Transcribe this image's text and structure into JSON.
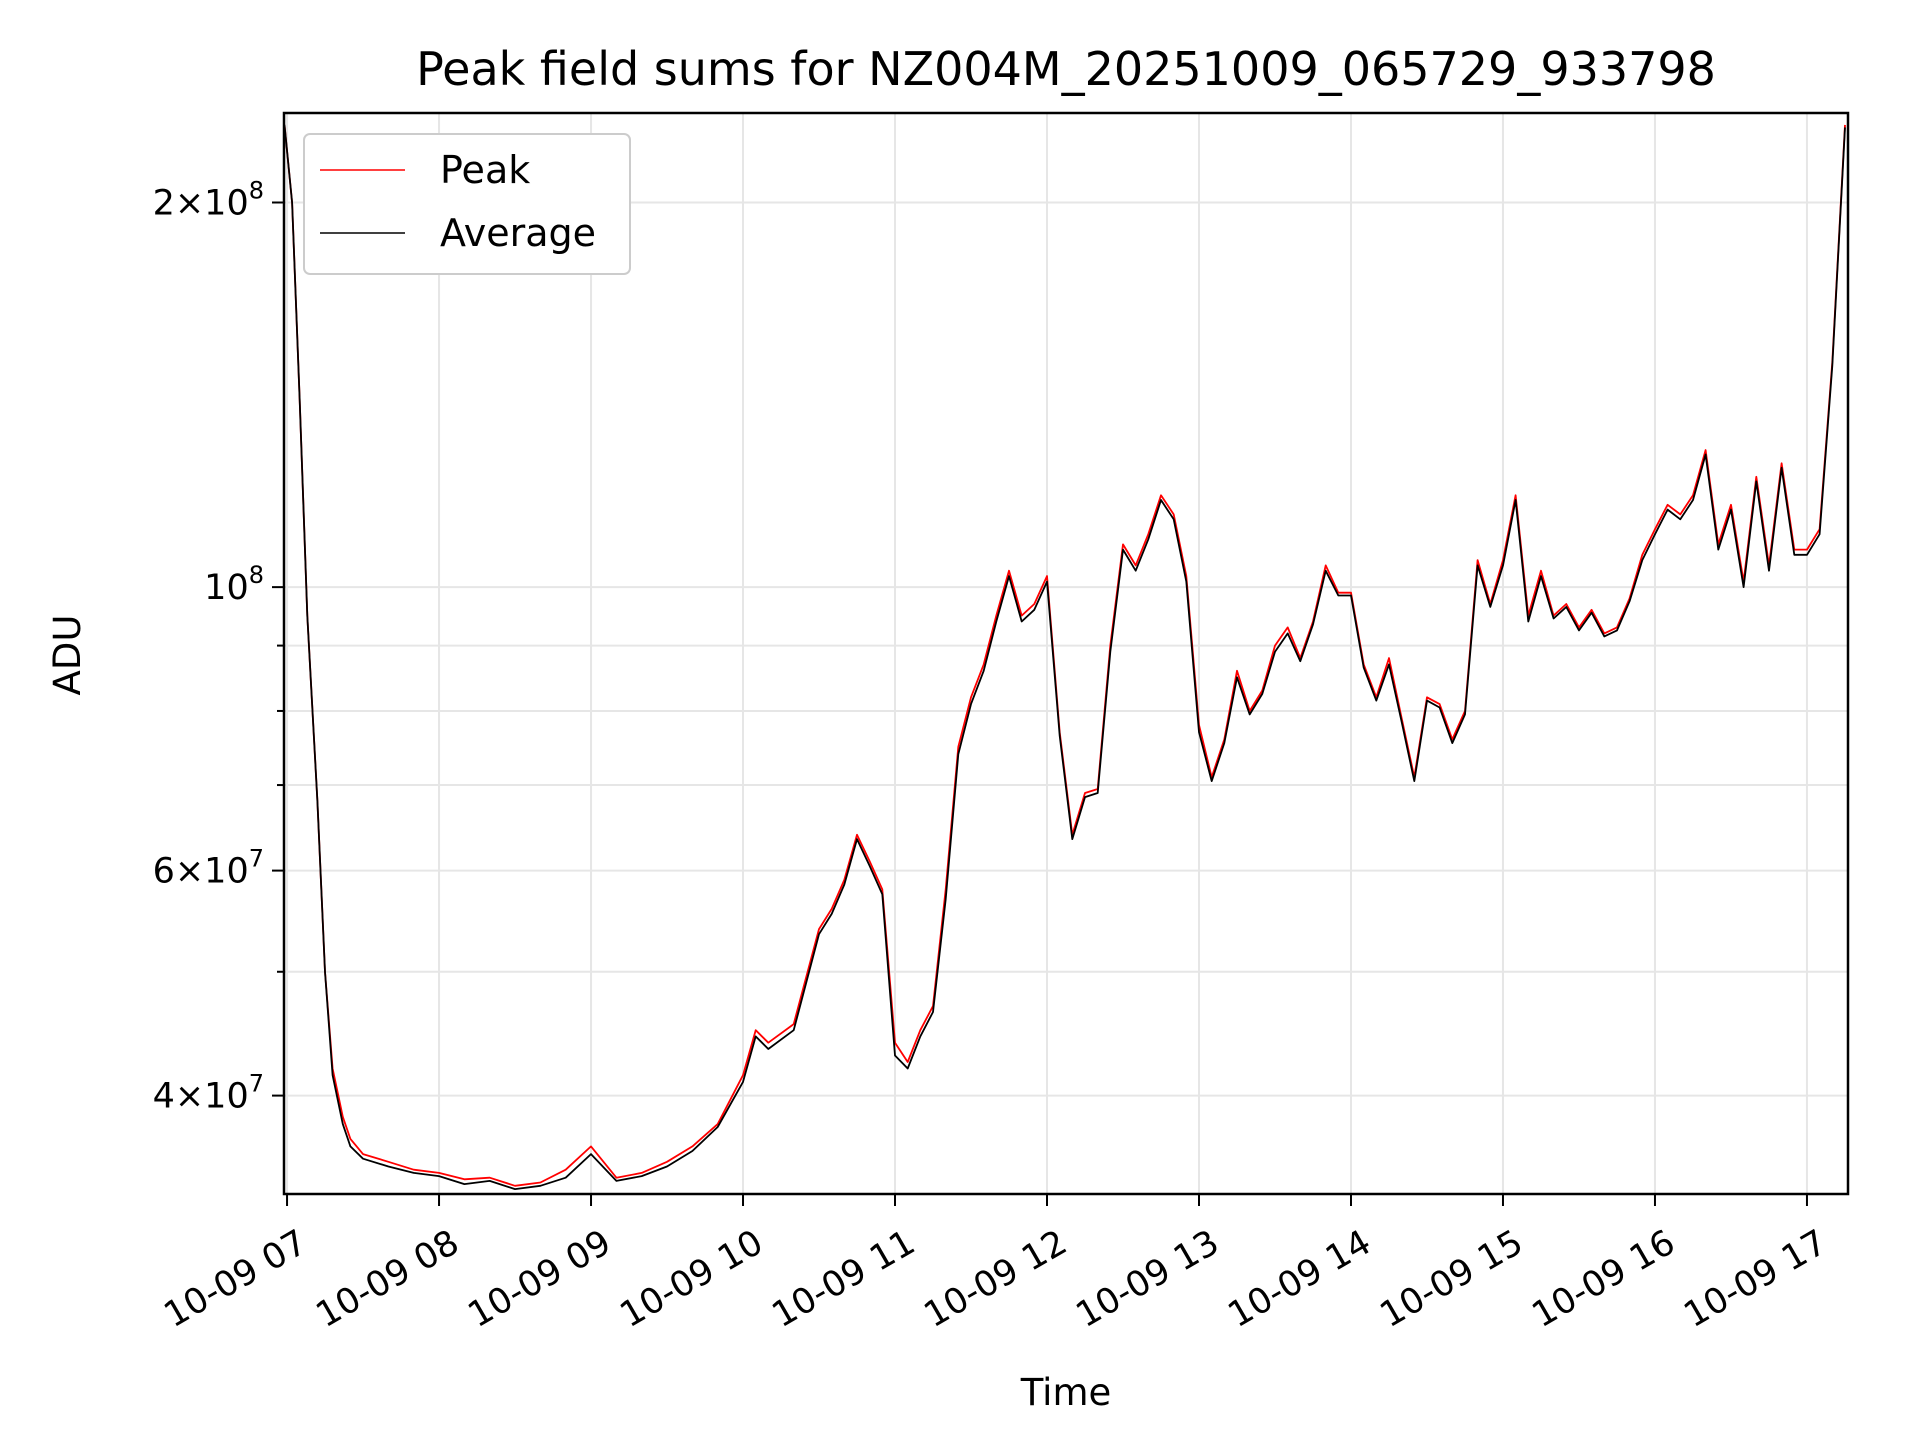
{
  "chart_data": {
    "type": "line",
    "title": "Peak field sums for NZ004M_20251009_065729_933798",
    "xlabel": "Time",
    "ylabel": "ADU",
    "yscale": "log",
    "ylim": [
      33500000,
      235000000
    ],
    "xlim_hours": [
      6.98,
      17.27
    ],
    "grid": true,
    "legend_position": "top-left",
    "x_ticks": [
      {
        "hour": 7,
        "label": "10-09 07"
      },
      {
        "hour": 8,
        "label": "10-09 08"
      },
      {
        "hour": 9,
        "label": "10-09 09"
      },
      {
        "hour": 10,
        "label": "10-09 10"
      },
      {
        "hour": 11,
        "label": "10-09 11"
      },
      {
        "hour": 12,
        "label": "10-09 12"
      },
      {
        "hour": 13,
        "label": "10-09 13"
      },
      {
        "hour": 14,
        "label": "10-09 14"
      },
      {
        "hour": 15,
        "label": "10-09 15"
      },
      {
        "hour": 16,
        "label": "10-09 16"
      },
      {
        "hour": 17,
        "label": "10-09 17"
      }
    ],
    "y_major_ticks": [
      {
        "value": 40000000,
        "mant": "4",
        "exp": "7"
      },
      {
        "value": 60000000,
        "mant": "6",
        "exp": "7"
      },
      {
        "value": 100000000,
        "mant": "",
        "exp": "8"
      },
      {
        "value": 200000000,
        "mant": "2",
        "exp": "8"
      }
    ],
    "y_minor_ticks": [
      50000000,
      70000000,
      80000000,
      90000000
    ],
    "time_labels": [
      "06:59",
      "07:02",
      "07:05",
      "07:08",
      "07:12",
      "07:15",
      "07:18",
      "07:22",
      "07:25",
      "07:30",
      "07:40",
      "07:50",
      "08:00",
      "08:10",
      "08:20",
      "08:30",
      "08:40",
      "08:50",
      "09:00",
      "09:10",
      "09:20",
      "09:30",
      "09:40",
      "09:50",
      "10:00",
      "10:05",
      "10:10",
      "10:20",
      "10:30",
      "10:35",
      "10:40",
      "10:45",
      "10:50",
      "10:55",
      "11:00",
      "11:05",
      "11:10",
      "11:15",
      "11:20",
      "11:25",
      "11:30",
      "11:35",
      "11:40",
      "11:45",
      "11:50",
      "11:55",
      "12:00",
      "12:05",
      "12:10",
      "12:15",
      "12:20",
      "12:25",
      "12:30",
      "12:35",
      "12:40",
      "12:45",
      "12:50",
      "12:55",
      "13:00",
      "13:05",
      "13:10",
      "13:15",
      "13:20",
      "13:25",
      "13:30",
      "13:35",
      "13:40",
      "13:45",
      "13:50",
      "13:55",
      "14:00",
      "14:05",
      "14:10",
      "14:15",
      "14:20",
      "14:25",
      "14:30",
      "14:35",
      "14:40",
      "14:45",
      "14:50",
      "14:55",
      "15:00",
      "15:05",
      "15:10",
      "15:15",
      "15:20",
      "15:25",
      "15:30",
      "15:35",
      "15:40",
      "15:45",
      "15:50",
      "15:55",
      "16:00",
      "16:05",
      "16:10",
      "16:15",
      "16:20",
      "16:25",
      "16:30",
      "16:35",
      "16:40",
      "16:45",
      "16:50",
      "16:55",
      "17:00",
      "17:05",
      "17:10",
      "17:15"
    ],
    "series": [
      {
        "name": "Peak",
        "color": "#ff0000",
        "values": [
          230000000,
          200000000,
          140000000,
          95000000,
          68000000,
          50000000,
          42000000,
          38500000,
          37000000,
          36000000,
          35500000,
          35000000,
          34800000,
          34400000,
          34500000,
          34000000,
          34200000,
          35000000,
          36500000,
          34500000,
          34800000,
          35500000,
          36500000,
          38000000,
          41500000,
          45000000,
          44000000,
          45500000,
          54000000,
          56000000,
          59000000,
          64000000,
          61000000,
          58000000,
          44000000,
          42500000,
          45000000,
          47000000,
          58000000,
          75000000,
          82000000,
          87000000,
          95000000,
          103000000,
          95000000,
          97000000,
          102000000,
          77000000,
          64000000,
          69000000,
          69500000,
          90000000,
          108000000,
          104000000,
          110000000,
          118000000,
          114000000,
          102000000,
          78000000,
          71000000,
          76000000,
          86000000,
          80000000,
          83000000,
          90000000,
          93000000,
          88000000,
          94000000,
          104000000,
          99000000,
          99000000,
          87000000,
          82000000,
          88000000,
          79000000,
          71000000,
          82000000,
          81000000,
          76000000,
          80000000,
          105000000,
          97000000,
          105000000,
          118000000,
          95000000,
          103000000,
          95000000,
          97000000,
          93000000,
          96000000,
          92000000,
          93000000,
          98000000,
          106000000,
          111000000,
          116000000,
          114000000,
          118000000,
          128000000,
          108000000,
          116000000,
          101000000,
          122000000,
          104000000,
          125000000,
          107000000,
          107000000,
          111000000,
          150000000,
          230000000
        ]
      },
      {
        "name": "Average",
        "color": "#000000",
        "values": [
          230000000,
          200000000,
          140000000,
          95000000,
          68000000,
          50000000,
          41500000,
          38000000,
          36500000,
          35700000,
          35200000,
          34800000,
          34600000,
          34100000,
          34300000,
          33800000,
          34000000,
          34500000,
          36000000,
          34300000,
          34600000,
          35200000,
          36200000,
          37800000,
          41000000,
          44500000,
          43500000,
          45000000,
          53500000,
          55500000,
          58500000,
          63500000,
          60500000,
          57500000,
          43000000,
          42000000,
          44500000,
          46500000,
          57000000,
          74000000,
          81000000,
          86000000,
          94000000,
          102000000,
          94000000,
          96000000,
          101000000,
          76500000,
          63500000,
          68500000,
          69000000,
          89000000,
          107000000,
          103000000,
          109000000,
          117000000,
          113000000,
          101000000,
          77000000,
          70500000,
          75500000,
          85000000,
          79500000,
          82500000,
          89000000,
          92000000,
          87500000,
          93500000,
          103000000,
          98500000,
          98500000,
          86500000,
          81500000,
          87000000,
          78500000,
          70500000,
          81500000,
          80500000,
          75500000,
          79500000,
          104000000,
          96500000,
          104000000,
          117000000,
          94000000,
          102000000,
          94500000,
          96500000,
          92500000,
          95500000,
          91500000,
          92500000,
          97500000,
          105000000,
          110000000,
          115000000,
          113000000,
          117000000,
          127000000,
          107000000,
          115000000,
          100000000,
          121000000,
          103000000,
          124000000,
          106000000,
          106000000,
          110000000,
          149000000,
          229000000
        ]
      }
    ]
  }
}
